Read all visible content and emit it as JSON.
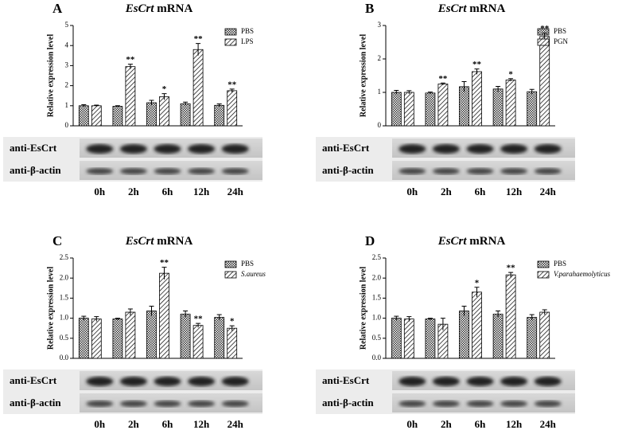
{
  "chart_data": [
    {
      "type": "bar",
      "panel": "A",
      "title": "EsCrt mRNA",
      "y_label": "Relative expression level",
      "categories": [
        "0h",
        "2h",
        "6h",
        "12h",
        "24h"
      ],
      "ylim": [
        0,
        5
      ],
      "yticks": [
        0,
        1,
        2,
        3,
        4,
        5
      ],
      "series": [
        {
          "name": "PBS",
          "color": "#000000",
          "values": [
            1.0,
            0.97,
            1.15,
            1.1,
            1.02
          ],
          "errors": [
            0.05,
            0.03,
            0.12,
            0.08,
            0.07
          ],
          "sig_labels": [
            null,
            null,
            null,
            null,
            null
          ]
        },
        {
          "name": "LPS",
          "color": "#000000",
          "values": [
            1.0,
            2.95,
            1.45,
            3.8,
            1.75
          ],
          "errors": [
            0.03,
            0.12,
            0.15,
            0.3,
            0.08
          ],
          "sig_labels": [
            null,
            "**",
            "*",
            "**",
            "**"
          ]
        }
      ],
      "blot_labels": [
        "anti-EsCrt",
        "anti-β-actin"
      ]
    },
    {
      "type": "bar",
      "panel": "B",
      "title": "EsCrt mRNA",
      "y_label": "Relative expression level",
      "categories": [
        "0h",
        "2h",
        "6h",
        "12h",
        "24h"
      ],
      "ylim": [
        0,
        3
      ],
      "yticks": [
        0,
        1,
        2,
        3
      ],
      "series": [
        {
          "name": "PBS",
          "color": "#000000",
          "values": [
            1.0,
            0.98,
            1.17,
            1.1,
            1.02
          ],
          "errors": [
            0.06,
            0.03,
            0.15,
            0.08,
            0.07
          ],
          "sig_labels": [
            null,
            null,
            null,
            null,
            null
          ]
        },
        {
          "name": "PGN",
          "color": "#000000",
          "values": [
            1.0,
            1.25,
            1.62,
            1.37,
            2.67
          ],
          "errors": [
            0.05,
            0.03,
            0.08,
            0.04,
            0.1
          ],
          "sig_labels": [
            null,
            "**",
            "**",
            "*",
            "**"
          ]
        }
      ],
      "blot_labels": [
        "anti-EsCrt",
        "anti-β-actin"
      ]
    },
    {
      "type": "bar",
      "panel": "C",
      "title": "EsCrt mRNA",
      "y_label": "Relative expression level",
      "categories": [
        "0h",
        "2h",
        "6h",
        "12h",
        "24h"
      ],
      "ylim": [
        0,
        2.5
      ],
      "yticks": [
        {
          "value": 0,
          "label": "0.0"
        },
        {
          "value": 0.5,
          "label": "0.5"
        },
        {
          "value": 1,
          "label": "1.0"
        },
        {
          "value": 1.5,
          "label": "1.5"
        },
        {
          "value": 2,
          "label": "2.0"
        },
        {
          "value": 2.5,
          "label": "2.5"
        }
      ],
      "series": [
        {
          "name": "PBS",
          "color": "#000000",
          "values": [
            1.0,
            0.98,
            1.18,
            1.1,
            1.02
          ],
          "errors": [
            0.05,
            0.02,
            0.12,
            0.08,
            0.07
          ],
          "sig_labels": [
            null,
            null,
            null,
            null,
            null
          ]
        },
        {
          "name": "S.aureus",
          "color": "#000000",
          "legend_italic": true,
          "values": [
            0.98,
            1.15,
            2.12,
            0.82,
            0.75
          ],
          "errors": [
            0.06,
            0.08,
            0.15,
            0.05,
            0.06
          ],
          "sig_labels": [
            null,
            null,
            "**",
            "**",
            "*"
          ]
        }
      ],
      "blot_labels": [
        "anti-EsCrt",
        "anti-β-actin"
      ]
    },
    {
      "type": "bar",
      "panel": "D",
      "title": "EsCrt mRNA",
      "y_label": "Relative expression level",
      "categories": [
        "0h",
        "2h",
        "6h",
        "12h",
        "24h"
      ],
      "ylim": [
        0,
        2.5
      ],
      "yticks": [
        {
          "value": 0,
          "label": "0.0"
        },
        {
          "value": 0.5,
          "label": "0.5"
        },
        {
          "value": 1,
          "label": "1.0"
        },
        {
          "value": 1.5,
          "label": "1.5"
        },
        {
          "value": 2,
          "label": "2.0"
        },
        {
          "value": 2.5,
          "label": "2.5"
        }
      ],
      "series": [
        {
          "name": "PBS",
          "color": "#000000",
          "values": [
            1.0,
            0.98,
            1.18,
            1.1,
            1.02
          ],
          "errors": [
            0.05,
            0.02,
            0.12,
            0.08,
            0.07
          ],
          "sig_labels": [
            null,
            null,
            null,
            null,
            null
          ]
        },
        {
          "name": "V.parahaemolyticus",
          "color": "#000000",
          "legend_italic": true,
          "values": [
            0.98,
            0.85,
            1.65,
            2.08,
            1.15
          ],
          "errors": [
            0.06,
            0.15,
            0.12,
            0.06,
            0.06
          ],
          "sig_labels": [
            null,
            null,
            "*",
            "**",
            null
          ]
        }
      ],
      "blot_labels": [
        "anti-EsCrt",
        "anti-β-actin"
      ]
    }
  ]
}
